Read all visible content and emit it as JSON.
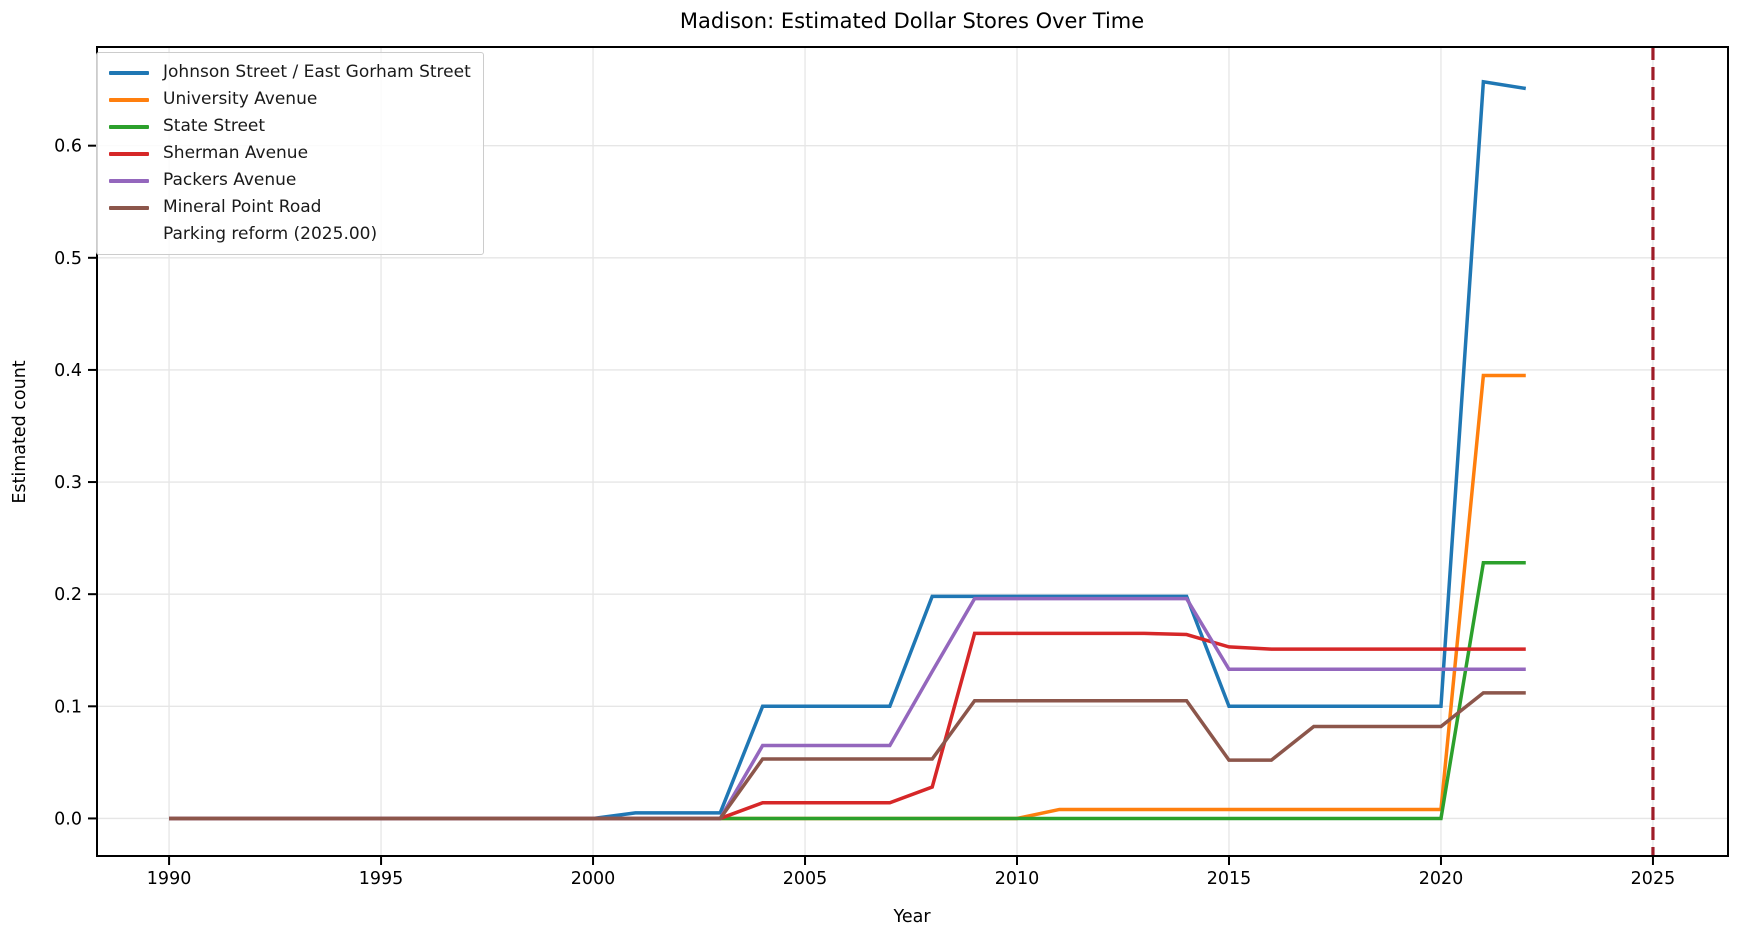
{
  "chart_data": {
    "type": "line",
    "title": "Madison: Estimated Dollar Stores Over Time",
    "xlabel": "Year",
    "ylabel": "Estimated count",
    "xlim": [
      1988.3,
      2026.77
    ],
    "ylim": [
      -0.0335,
      0.688
    ],
    "x_ticks": [
      1990,
      1995,
      2000,
      2005,
      2010,
      2015,
      2020,
      2025
    ],
    "y_ticks": [
      0.0,
      0.1,
      0.2,
      0.3,
      0.4,
      0.5,
      0.6
    ],
    "y_tick_labels": [
      "0.0",
      "0.1",
      "0.2",
      "0.3",
      "0.4",
      "0.5",
      "0.6"
    ],
    "grid": true,
    "grid_color": "#e6e6e6",
    "legend_position": "upper-left",
    "x": [
      1990,
      1991,
      1992,
      1993,
      1994,
      1995,
      1996,
      1997,
      1998,
      1999,
      2000,
      2001,
      2002,
      2003,
      2004,
      2005,
      2006,
      2007,
      2008,
      2009,
      2010,
      2011,
      2012,
      2013,
      2014,
      2015,
      2016,
      2017,
      2018,
      2019,
      2020,
      2021,
      2022
    ],
    "series": [
      {
        "name": "Johnson Street / East Gorham Street",
        "color": "#1f77b4",
        "values": [
          0,
          0,
          0,
          0,
          0,
          0,
          0,
          0,
          0,
          0,
          0,
          0.005,
          0.005,
          0.005,
          0.1,
          0.1,
          0.1,
          0.1,
          0.198,
          0.198,
          0.198,
          0.198,
          0.198,
          0.198,
          0.198,
          0.1,
          0.1,
          0.1,
          0.1,
          0.1,
          0.1,
          0.657,
          0.651
        ]
      },
      {
        "name": "University Avenue",
        "color": "#ff7f0e",
        "values": [
          0,
          0,
          0,
          0,
          0,
          0,
          0,
          0,
          0,
          0,
          0,
          0,
          0,
          0,
          0,
          0,
          0,
          0,
          0,
          0,
          0,
          0.008,
          0.008,
          0.008,
          0.008,
          0.008,
          0.008,
          0.008,
          0.008,
          0.008,
          0.008,
          0.395,
          0.395
        ]
      },
      {
        "name": "State Street",
        "color": "#2ca02c",
        "values": [
          0,
          0,
          0,
          0,
          0,
          0,
          0,
          0,
          0,
          0,
          0,
          0,
          0,
          0,
          0,
          0,
          0,
          0,
          0,
          0,
          0,
          0,
          0,
          0,
          0,
          0,
          0,
          0,
          0,
          0,
          0,
          0.228,
          0.228
        ]
      },
      {
        "name": "Sherman Avenue",
        "color": "#d62728",
        "values": [
          0,
          0,
          0,
          0,
          0,
          0,
          0,
          0,
          0,
          0,
          0,
          0,
          0,
          0,
          0.014,
          0.014,
          0.014,
          0.014,
          0.028,
          0.165,
          0.165,
          0.165,
          0.165,
          0.165,
          0.164,
          0.153,
          0.151,
          0.151,
          0.151,
          0.151,
          0.151,
          0.151,
          0.151
        ]
      },
      {
        "name": "Packers Avenue",
        "color": "#9467bd",
        "values": [
          0,
          0,
          0,
          0,
          0,
          0,
          0,
          0,
          0,
          0,
          0,
          0,
          0,
          0,
          0.065,
          0.065,
          0.065,
          0.065,
          0.131,
          0.196,
          0.196,
          0.196,
          0.196,
          0.196,
          0.196,
          0.133,
          0.133,
          0.133,
          0.133,
          0.133,
          0.133,
          0.133,
          0.133
        ]
      },
      {
        "name": "Mineral Point Road",
        "color": "#8c564b",
        "values": [
          0,
          0,
          0,
          0,
          0,
          0,
          0,
          0,
          0,
          0,
          0,
          0,
          0,
          0,
          0.053,
          0.053,
          0.053,
          0.053,
          0.053,
          0.105,
          0.105,
          0.105,
          0.105,
          0.105,
          0.105,
          0.052,
          0.052,
          0.082,
          0.082,
          0.082,
          0.082,
          0.112,
          0.112
        ]
      }
    ],
    "event_line": {
      "label": "Parking reform (2025.00)",
      "x": 2025,
      "color": "#9e1c28",
      "style": "dashed"
    }
  }
}
